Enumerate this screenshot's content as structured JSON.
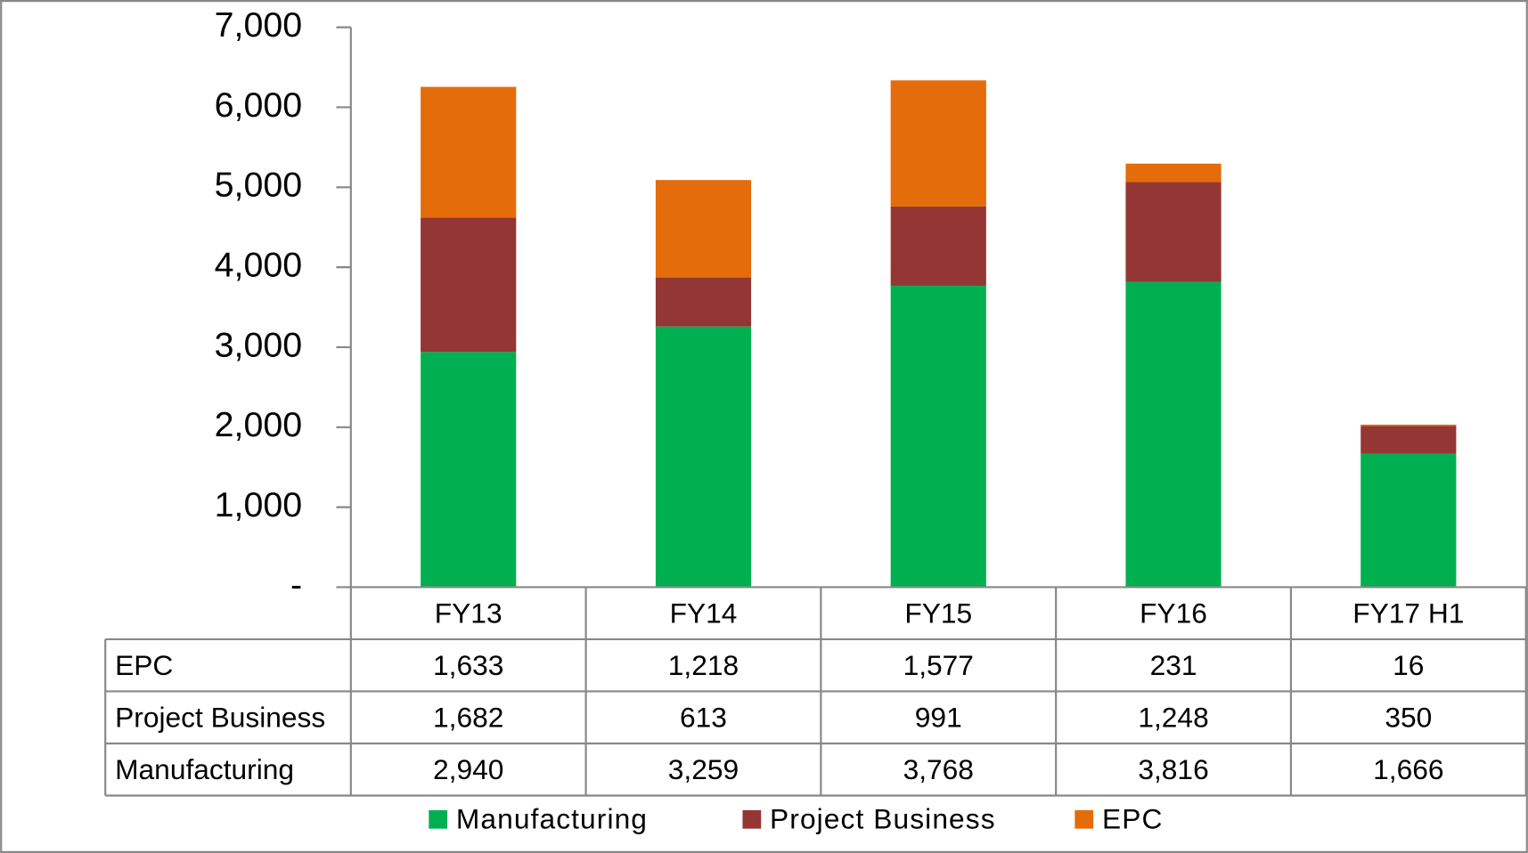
{
  "chart_data": {
    "type": "bar",
    "stacked": true,
    "categories": [
      "FY13",
      "FY14",
      "FY15",
      "FY16",
      "FY17 H1"
    ],
    "series": [
      {
        "name": "Manufacturing",
        "color": "#00b050",
        "values": [
          2940,
          3259,
          3768,
          3816,
          1666
        ],
        "value_labels": [
          "2,940",
          "3,259",
          "3,768",
          "3,816",
          "1,666"
        ]
      },
      {
        "name": "Project Business",
        "color": "#943634",
        "values": [
          1682,
          613,
          991,
          1248,
          350
        ],
        "value_labels": [
          "1,682",
          "613",
          "991",
          "1,248",
          "350"
        ]
      },
      {
        "name": "EPC",
        "color": "#e46c0a",
        "values": [
          1633,
          1218,
          1577,
          231,
          16
        ],
        "value_labels": [
          "1,633",
          "1,218",
          "1,577",
          "231",
          "16"
        ]
      }
    ],
    "ylim": [
      0,
      7000
    ],
    "yticks": [
      {
        "value": 0,
        "label": "-"
      },
      {
        "value": 1000,
        "label": "1,000"
      },
      {
        "value": 2000,
        "label": "2,000"
      },
      {
        "value": 3000,
        "label": "3,000"
      },
      {
        "value": 4000,
        "label": "4,000"
      },
      {
        "value": 5000,
        "label": "5,000"
      },
      {
        "value": 6000,
        "label": "6,000"
      },
      {
        "value": 7000,
        "label": "7,000"
      }
    ],
    "legend": "bottom",
    "grid": false
  }
}
